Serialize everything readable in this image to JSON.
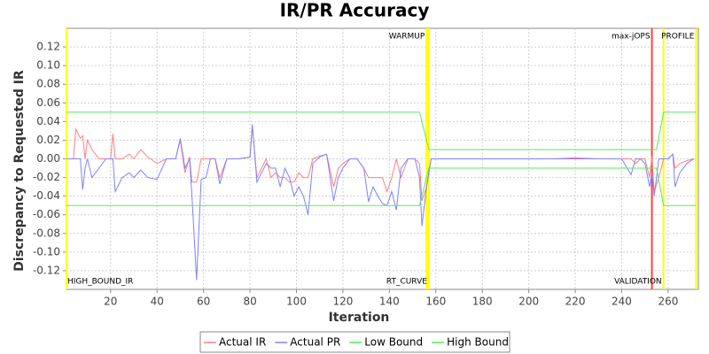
{
  "chart_data": {
    "type": "line",
    "title": "IR/PR Accuracy",
    "x_label": "Iteration",
    "y_label": "Discrepancy to Requested IR",
    "xlim": [
      1,
      273
    ],
    "xticks": [
      20,
      40,
      60,
      80,
      100,
      120,
      140,
      160,
      180,
      200,
      220,
      240,
      260
    ],
    "ylim": [
      -0.14,
      0.14
    ],
    "yticks": [
      -0.12,
      {
        "value": -0.1,
        "label": "-0.10"
      },
      -0.08,
      -0.06,
      -0.04,
      -0.02,
      {
        "value": 0,
        "label": "0.00"
      },
      0.02,
      0.04,
      0.06,
      0.08,
      {
        "value": 0.1,
        "label": "0.10"
      },
      0.12
    ],
    "grid": true,
    "legend": "bottom",
    "markers": [
      {
        "x": 1,
        "label": "HIGH_BOUND_IR",
        "position": "bottom",
        "color": "#ffff00"
      },
      {
        "x": 156,
        "label": "WARMUP",
        "position": "top",
        "color": "#ffff00"
      },
      {
        "x": 157,
        "label": "RT_CURVE",
        "position": "bottom",
        "color": "#ffff00"
      },
      {
        "x": 253,
        "label": "max-jOPS",
        "position": "top",
        "color": "#ff4040"
      },
      {
        "x": 258,
        "label": "VALIDATION",
        "position": "bottom",
        "color": "#ffff00"
      },
      {
        "x": 272,
        "label": "PROFILE",
        "position": "top",
        "color": "#ffff00"
      }
    ],
    "series": [
      {
        "name": "Actual IR",
        "color": "#ff8080",
        "x": [
          1,
          4,
          5,
          7,
          8,
          9,
          10,
          12,
          15,
          18,
          20,
          21,
          22,
          25,
          28,
          30,
          33,
          36,
          40,
          44,
          48,
          50,
          52,
          54,
          55,
          57,
          59,
          61,
          63,
          65,
          67,
          70,
          75,
          80,
          81,
          83,
          85,
          87,
          89,
          91,
          93,
          95,
          97,
          99,
          101,
          103,
          105,
          107,
          110,
          113,
          116,
          118,
          120,
          123,
          126,
          129,
          131,
          133,
          135,
          137,
          139,
          141,
          143,
          145,
          148,
          151,
          153,
          154,
          156,
          158,
          160,
          165,
          170,
          180,
          190,
          200,
          210,
          220,
          230,
          240,
          244,
          246,
          248,
          250,
          252,
          253,
          254,
          256,
          258,
          260,
          262,
          263,
          265,
          268,
          271
        ],
        "values": [
          0,
          0,
          0.032,
          0.022,
          0.025,
          0,
          0.02,
          0.01,
          0,
          0,
          0,
          0.027,
          0,
          0,
          0.005,
          0,
          0.01,
          0.002,
          -0.005,
          0,
          0,
          0.02,
          -0.015,
          0.002,
          -0.025,
          -0.025,
          0,
          0,
          0,
          0,
          -0.02,
          0,
          0,
          0.002,
          0.035,
          -0.02,
          -0.01,
          0,
          -0.02,
          -0.015,
          -0.02,
          -0.02,
          -0.025,
          -0.025,
          -0.015,
          -0.02,
          -0.02,
          0,
          0.003,
          0.005,
          -0.03,
          -0.01,
          -0.005,
          0,
          0,
          -0.01,
          -0.02,
          -0.02,
          -0.02,
          -0.02,
          -0.035,
          -0.02,
          0,
          -0.02,
          0,
          0,
          -0.005,
          -0.045,
          -0.03,
          0,
          0,
          0,
          0,
          0,
          0,
          0,
          0,
          0.001,
          0,
          0,
          0,
          -0.005,
          0,
          0,
          -0.02,
          0.003,
          -0.035,
          -0.02,
          0,
          0,
          0.005,
          -0.01,
          -0.005,
          -0.002,
          0
        ]
      },
      {
        "name": "Actual PR",
        "color": "#8080ff",
        "x": [
          1,
          4,
          5,
          7,
          8,
          9,
          10,
          12,
          15,
          18,
          20,
          21,
          22,
          25,
          28,
          30,
          33,
          36,
          40,
          44,
          48,
          50,
          52,
          54,
          55,
          57,
          59,
          61,
          63,
          65,
          67,
          70,
          75,
          80,
          81,
          83,
          85,
          87,
          89,
          91,
          93,
          95,
          97,
          99,
          101,
          103,
          105,
          107,
          110,
          113,
          116,
          118,
          120,
          123,
          126,
          129,
          131,
          133,
          135,
          137,
          139,
          141,
          143,
          145,
          148,
          151,
          153,
          154,
          156,
          158,
          160,
          165,
          170,
          180,
          190,
          200,
          210,
          220,
          230,
          240,
          244,
          246,
          248,
          250,
          252,
          253,
          254,
          256,
          258,
          260,
          262,
          263,
          265,
          268,
          271
        ],
        "values": [
          0,
          0,
          0,
          0,
          -0.033,
          -0.01,
          0,
          -0.02,
          -0.01,
          0,
          0,
          0,
          -0.035,
          -0.02,
          -0.015,
          -0.02,
          -0.012,
          -0.02,
          -0.022,
          0,
          0,
          0.022,
          -0.01,
          0,
          -0.04,
          -0.13,
          -0.022,
          -0.02,
          0,
          0,
          -0.027,
          0,
          0,
          0.002,
          0.037,
          -0.025,
          -0.015,
          -0.005,
          -0.01,
          -0.01,
          -0.03,
          -0.01,
          -0.02,
          -0.04,
          -0.03,
          -0.04,
          -0.06,
          -0.005,
          0.002,
          0.005,
          -0.045,
          -0.02,
          -0.01,
          0,
          0,
          -0.01,
          -0.046,
          -0.03,
          -0.04,
          -0.048,
          -0.05,
          -0.035,
          -0.055,
          -0.01,
          0,
          0,
          -0.02,
          -0.072,
          -0.03,
          0,
          0,
          0,
          0,
          0,
          0,
          0,
          0,
          0,
          0,
          0,
          -0.017,
          0,
          0,
          -0.005,
          -0.03,
          -0.015,
          -0.04,
          0,
          0,
          0,
          0.005,
          -0.03,
          -0.015,
          -0.005,
          0
        ]
      },
      {
        "name": "Low Bound",
        "color": "#55ee55",
        "x": [
          1,
          153,
          157,
          255,
          258,
          272
        ],
        "values": [
          -0.05,
          -0.05,
          -0.01,
          -0.01,
          -0.05,
          -0.05
        ]
      },
      {
        "name": "High Bound",
        "color": "#55ee55",
        "x": [
          1,
          153,
          157,
          255,
          258,
          272
        ],
        "values": [
          0.05,
          0.05,
          0.01,
          0.01,
          0.05,
          0.05
        ]
      }
    ]
  }
}
